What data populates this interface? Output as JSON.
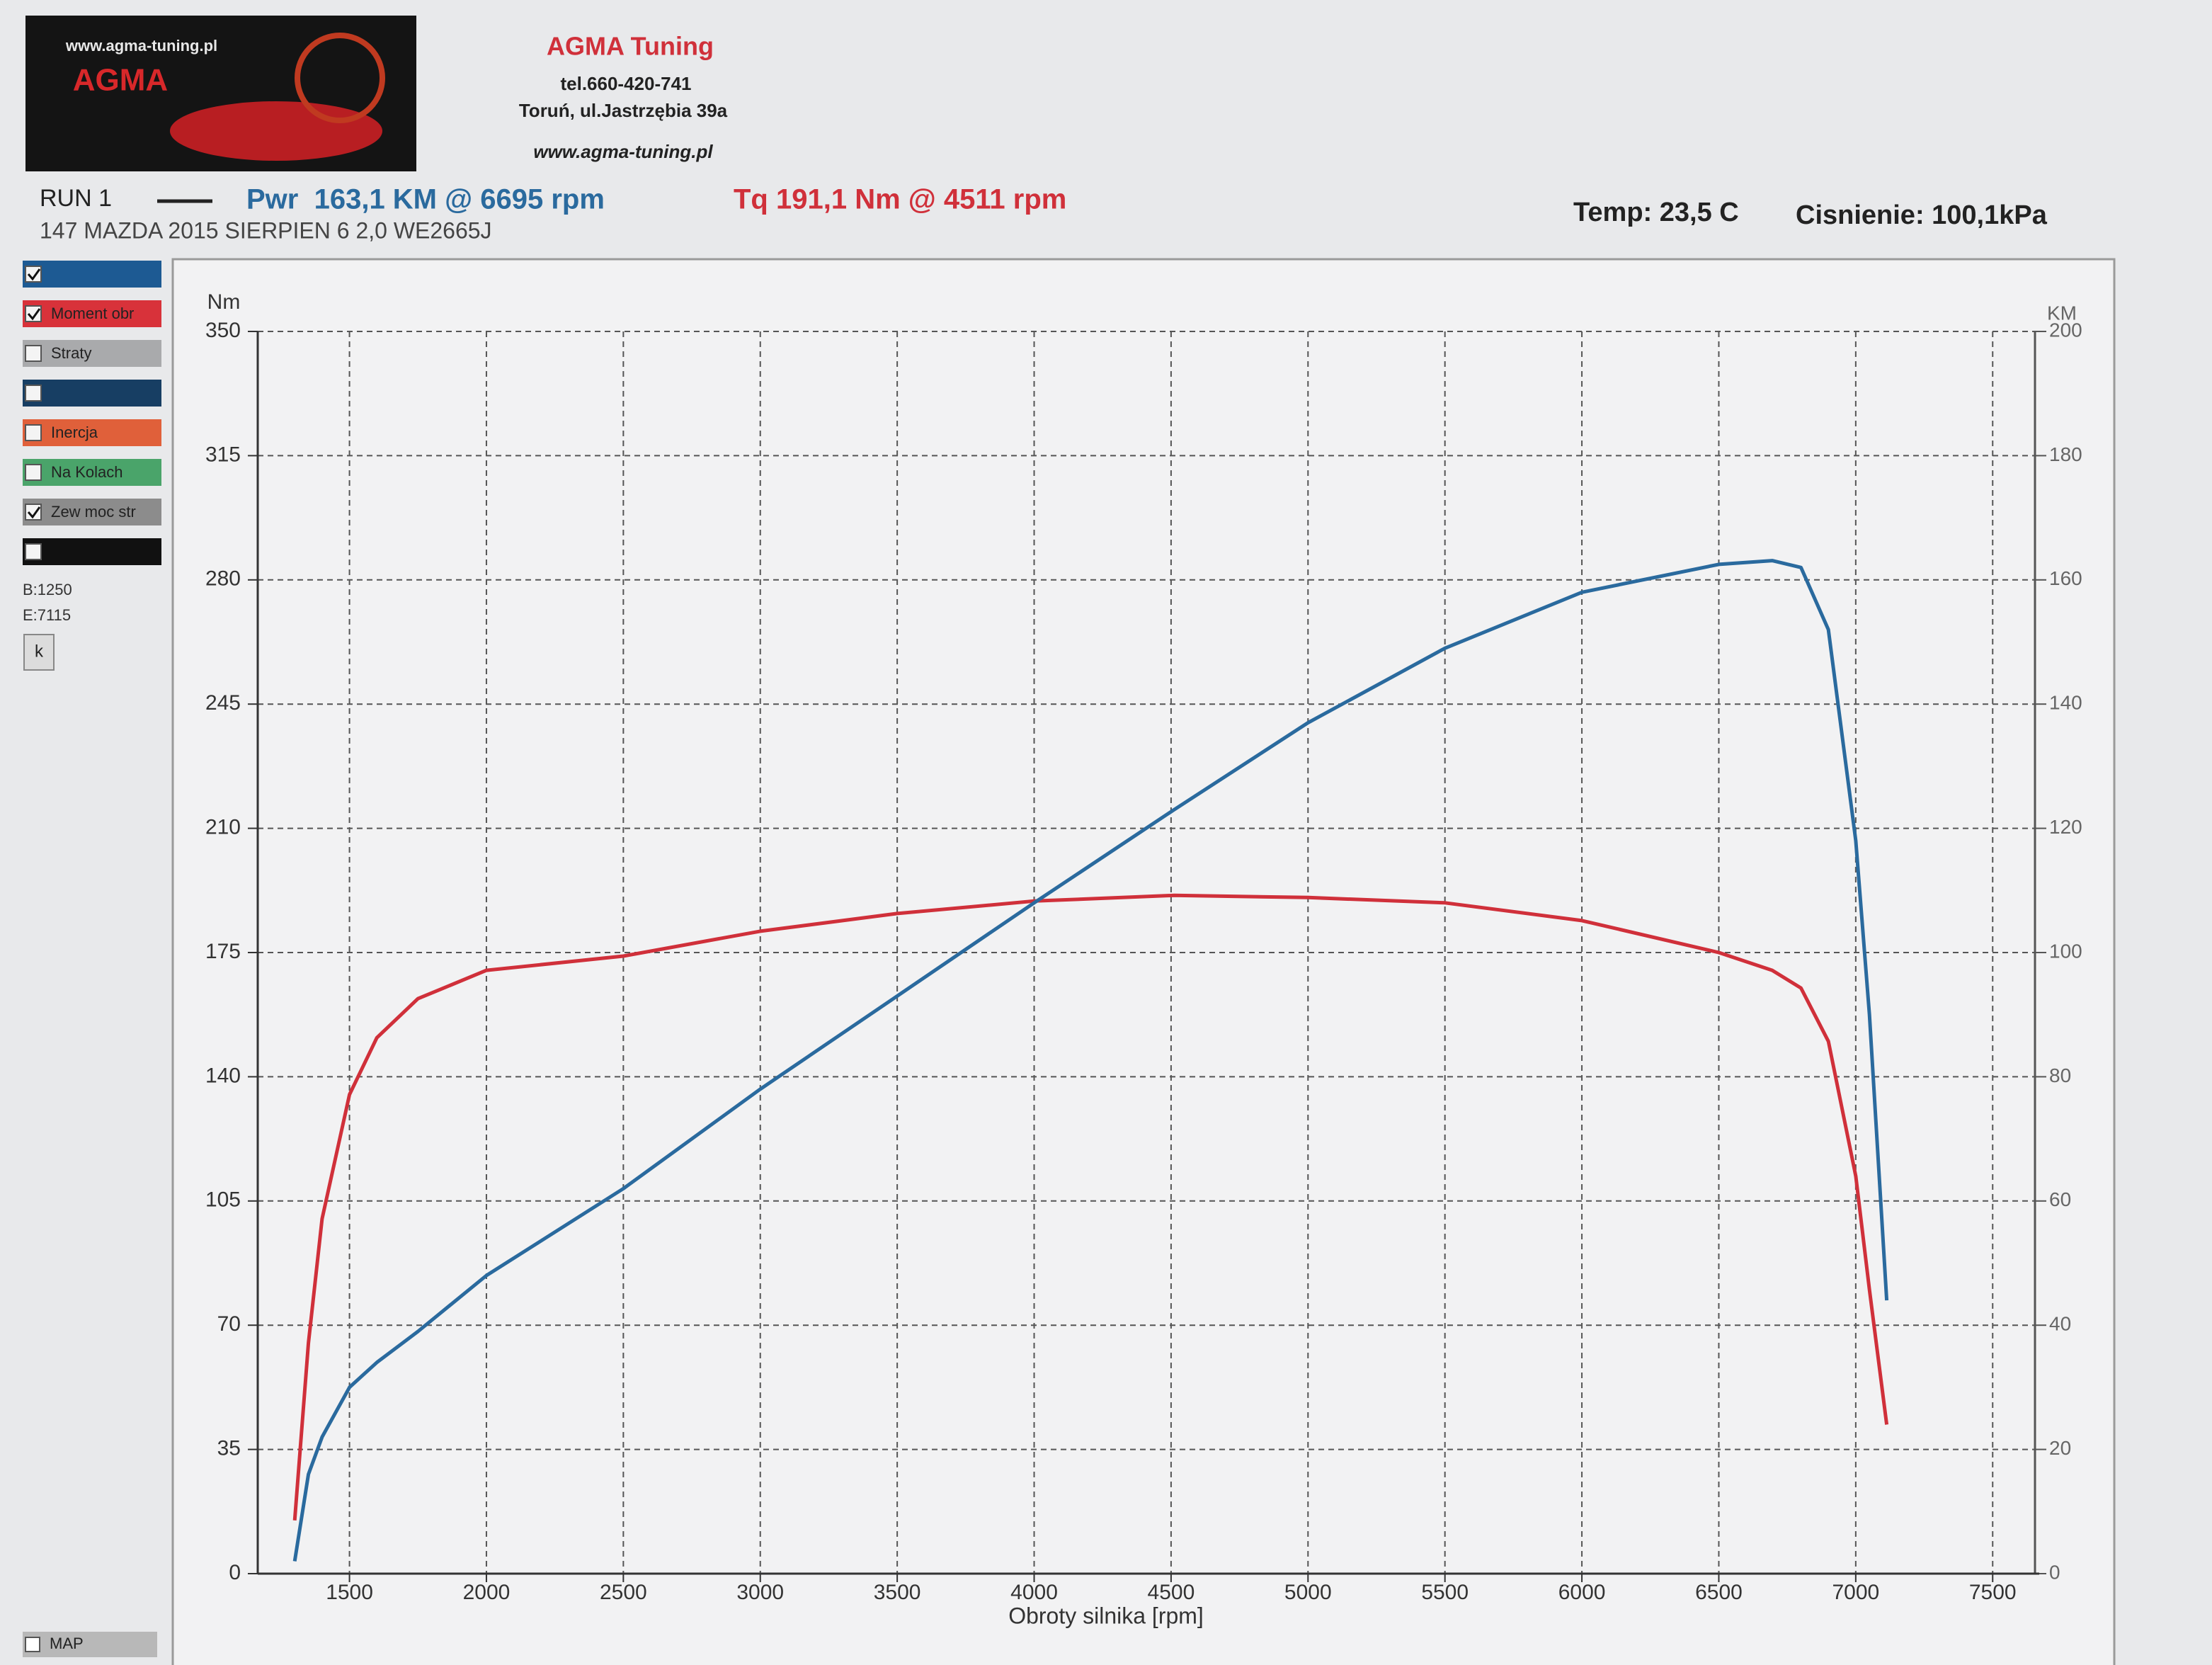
{
  "header": {
    "logo_url": "www.agma-tuning.pl",
    "logo_name": "AGMA",
    "company": "AGMA Tuning",
    "phone": "tel.660-420-741",
    "address": "Toruń, ul.Jastrzębia 39a",
    "website": "www.agma-tuning.pl"
  },
  "run": {
    "label": "RUN 1",
    "power_summary": "Pwr  163,1 KM @ 6695 rpm",
    "torque_summary": "Tq 191,1 Nm @ 4511 rpm",
    "vehicle": "147 MAZDA 2015 SIERPIEN 6 2,0 WE2665J",
    "temp": "Temp: 23,5 C",
    "pressure": "Cisnienie: 100,1kPa"
  },
  "panel": {
    "items": [
      {
        "color": "#1d5a93",
        "checked": true
      },
      {
        "label": "Moment obr",
        "color": "#d8323a",
        "checked": true
      },
      {
        "label": "Straty",
        "color": "#a9aaac",
        "checked": false
      },
      {
        "color": "#173e63",
        "checked": false
      },
      {
        "label": "Inercja",
        "color": "#e0603a",
        "checked": false
      },
      {
        "label": "Na Kolach",
        "color": "#4aa46a",
        "checked": false
      },
      {
        "label": "Zew moc str",
        "color": "#8c8c8c",
        "checked": true
      },
      {
        "color": "#111111",
        "checked": false
      }
    ],
    "begin": "B:1250",
    "end": "E:7115",
    "button": "k",
    "map": "MAP"
  },
  "chart_data": {
    "type": "line",
    "y_label": "Nm",
    "y2_label": "KM",
    "x_label": "Obroty silnika [rpm]",
    "x": [
      1300,
      1350,
      1400,
      1500,
      1600,
      1750,
      2000,
      2500,
      3000,
      3500,
      4000,
      4511,
      5000,
      5500,
      6000,
      6500,
      6695,
      6800,
      6900,
      7000,
      7050,
      7113
    ],
    "series": [
      {
        "color": "#d0303a",
        "values": [
          15,
          65,
          100,
          135,
          151,
          162,
          170,
          174,
          181,
          186,
          189.5,
          191.1,
          190.5,
          189,
          184,
          175,
          170,
          165,
          150,
          112,
          80,
          42
        ]
      },
      {
        "color": "#2a6a9e",
        "axis": "y2",
        "values": [
          2,
          16,
          22,
          30,
          34,
          39,
          48,
          62,
          78,
          93,
          108,
          123,
          137,
          149,
          158,
          162.5,
          163.1,
          162,
          152,
          118,
          90,
          44
        ]
      }
    ],
    "xlim": [
      1165,
      7670
    ],
    "xticks": [
      1500,
      2000,
      2500,
      3000,
      3500,
      4000,
      4500,
      5000,
      5500,
      6000,
      6500,
      7000,
      7500
    ],
    "ylim": [
      0,
      350
    ],
    "yticks": [
      0,
      35,
      70,
      105,
      140,
      175,
      210,
      245,
      280,
      315,
      350
    ],
    "y2lim": [
      0,
      200
    ],
    "y2ticks": [
      0,
      20,
      40,
      60,
      80,
      100,
      120,
      140,
      160,
      180,
      200
    ],
    "grid": true
  }
}
